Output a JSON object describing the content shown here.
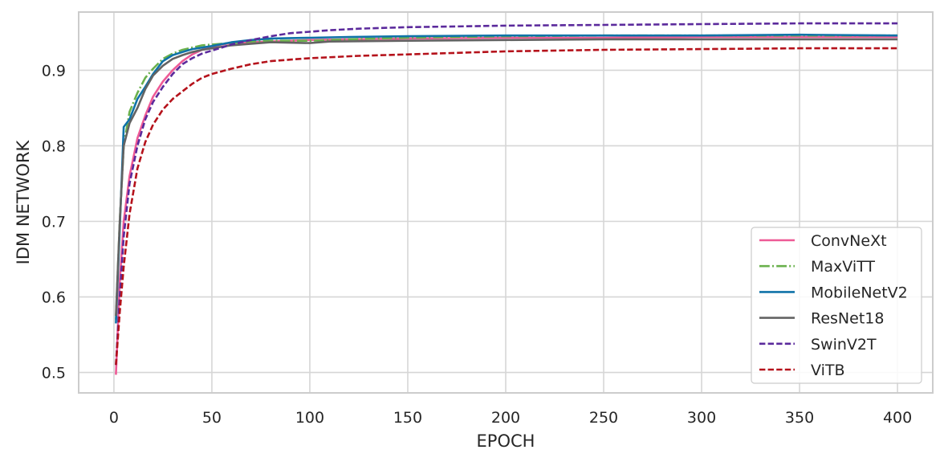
{
  "chart_data": {
    "type": "line",
    "title": "",
    "xlabel": "EPOCH",
    "ylabel": "IDM NETWORK",
    "xlim": [
      -18,
      418
    ],
    "ylim": [
      0.473,
      0.977
    ],
    "xticks": [
      0,
      50,
      100,
      150,
      200,
      250,
      300,
      350,
      400
    ],
    "yticks": [
      0.5,
      0.6,
      0.7,
      0.8,
      0.9
    ],
    "ytick_labels": [
      "0.5",
      "0.6",
      "0.7",
      "0.8",
      "0.9"
    ],
    "grid": true,
    "legend_position": "lower-right",
    "series": [
      {
        "name": "ConvNeXt",
        "color": "#ee5a96",
        "dash": "solid",
        "points": [
          [
            1,
            0.497
          ],
          [
            3,
            0.62
          ],
          [
            5,
            0.7
          ],
          [
            8,
            0.76
          ],
          [
            12,
            0.81
          ],
          [
            16,
            0.84
          ],
          [
            20,
            0.865
          ],
          [
            25,
            0.885
          ],
          [
            30,
            0.9
          ],
          [
            35,
            0.912
          ],
          [
            40,
            0.921
          ],
          [
            45,
            0.927
          ],
          [
            50,
            0.931
          ],
          [
            55,
            0.934
          ],
          [
            60,
            0.936
          ],
          [
            70,
            0.937
          ],
          [
            80,
            0.938
          ],
          [
            90,
            0.939
          ],
          [
            100,
            0.94
          ],
          [
            120,
            0.941
          ],
          [
            150,
            0.942
          ],
          [
            200,
            0.943
          ],
          [
            250,
            0.943
          ],
          [
            300,
            0.944
          ],
          [
            350,
            0.944
          ],
          [
            400,
            0.944
          ]
        ]
      },
      {
        "name": "MaxViTT",
        "color": "#6ab04c",
        "dash": "dashdot",
        "points": [
          [
            1,
            0.57
          ],
          [
            3,
            0.7
          ],
          [
            5,
            0.8
          ],
          [
            8,
            0.845
          ],
          [
            12,
            0.87
          ],
          [
            16,
            0.89
          ],
          [
            20,
            0.902
          ],
          [
            25,
            0.915
          ],
          [
            30,
            0.922
          ],
          [
            35,
            0.927
          ],
          [
            40,
            0.93
          ],
          [
            45,
            0.933
          ],
          [
            50,
            0.934
          ],
          [
            60,
            0.936
          ],
          [
            70,
            0.938
          ],
          [
            80,
            0.939
          ],
          [
            100,
            0.939
          ],
          [
            120,
            0.941
          ],
          [
            150,
            0.943
          ],
          [
            200,
            0.945
          ],
          [
            250,
            0.946
          ],
          [
            300,
            0.946
          ],
          [
            350,
            0.946
          ],
          [
            400,
            0.946
          ]
        ]
      },
      {
        "name": "MobileNetV2",
        "color": "#0f72a8",
        "dash": "solid",
        "points": [
          [
            1,
            0.565
          ],
          [
            3,
            0.69
          ],
          [
            5,
            0.825
          ],
          [
            8,
            0.835
          ],
          [
            12,
            0.862
          ],
          [
            16,
            0.878
          ],
          [
            20,
            0.895
          ],
          [
            25,
            0.912
          ],
          [
            30,
            0.92
          ],
          [
            35,
            0.924
          ],
          [
            40,
            0.928
          ],
          [
            45,
            0.93
          ],
          [
            50,
            0.932
          ],
          [
            60,
            0.937
          ],
          [
            70,
            0.94
          ],
          [
            80,
            0.942
          ],
          [
            100,
            0.943
          ],
          [
            120,
            0.944
          ],
          [
            150,
            0.945
          ],
          [
            200,
            0.946
          ],
          [
            250,
            0.946
          ],
          [
            300,
            0.946
          ],
          [
            350,
            0.947
          ],
          [
            400,
            0.946
          ]
        ]
      },
      {
        "name": "ResNet18",
        "color": "#636363",
        "dash": "solid",
        "points": [
          [
            1,
            0.575
          ],
          [
            3,
            0.7
          ],
          [
            5,
            0.8
          ],
          [
            8,
            0.83
          ],
          [
            12,
            0.85
          ],
          [
            16,
            0.875
          ],
          [
            20,
            0.893
          ],
          [
            25,
            0.906
          ],
          [
            30,
            0.915
          ],
          [
            35,
            0.92
          ],
          [
            40,
            0.924
          ],
          [
            45,
            0.927
          ],
          [
            50,
            0.929
          ],
          [
            60,
            0.933
          ],
          [
            70,
            0.935
          ],
          [
            80,
            0.937
          ],
          [
            100,
            0.936
          ],
          [
            110,
            0.938
          ],
          [
            150,
            0.939
          ],
          [
            200,
            0.94
          ],
          [
            250,
            0.941
          ],
          [
            300,
            0.941
          ],
          [
            350,
            0.941
          ],
          [
            400,
            0.941
          ]
        ]
      },
      {
        "name": "SwinV2T",
        "color": "#5b2a9c",
        "dash": "dashed",
        "points": [
          [
            1,
            0.51
          ],
          [
            3,
            0.6
          ],
          [
            5,
            0.68
          ],
          [
            8,
            0.75
          ],
          [
            12,
            0.8
          ],
          [
            16,
            0.835
          ],
          [
            20,
            0.858
          ],
          [
            25,
            0.878
          ],
          [
            30,
            0.895
          ],
          [
            35,
            0.908
          ],
          [
            40,
            0.916
          ],
          [
            45,
            0.922
          ],
          [
            50,
            0.926
          ],
          [
            60,
            0.934
          ],
          [
            70,
            0.94
          ],
          [
            80,
            0.945
          ],
          [
            90,
            0.949
          ],
          [
            100,
            0.951
          ],
          [
            110,
            0.953
          ],
          [
            125,
            0.955
          ],
          [
            150,
            0.957
          ],
          [
            175,
            0.958
          ],
          [
            200,
            0.959
          ],
          [
            250,
            0.96
          ],
          [
            300,
            0.961
          ],
          [
            350,
            0.962
          ],
          [
            400,
            0.962
          ]
        ]
      },
      {
        "name": "ViTB",
        "color": "#b5121b",
        "dash": "dashed",
        "points": [
          [
            1,
            0.51
          ],
          [
            3,
            0.58
          ],
          [
            5,
            0.64
          ],
          [
            8,
            0.71
          ],
          [
            12,
            0.77
          ],
          [
            16,
            0.805
          ],
          [
            20,
            0.828
          ],
          [
            25,
            0.848
          ],
          [
            30,
            0.862
          ],
          [
            35,
            0.872
          ],
          [
            40,
            0.882
          ],
          [
            45,
            0.89
          ],
          [
            50,
            0.895
          ],
          [
            60,
            0.902
          ],
          [
            70,
            0.908
          ],
          [
            80,
            0.912
          ],
          [
            90,
            0.914
          ],
          [
            100,
            0.916
          ],
          [
            125,
            0.919
          ],
          [
            150,
            0.921
          ],
          [
            175,
            0.923
          ],
          [
            200,
            0.925
          ],
          [
            250,
            0.927
          ],
          [
            300,
            0.928
          ],
          [
            350,
            0.929
          ],
          [
            400,
            0.929
          ]
        ]
      }
    ]
  }
}
